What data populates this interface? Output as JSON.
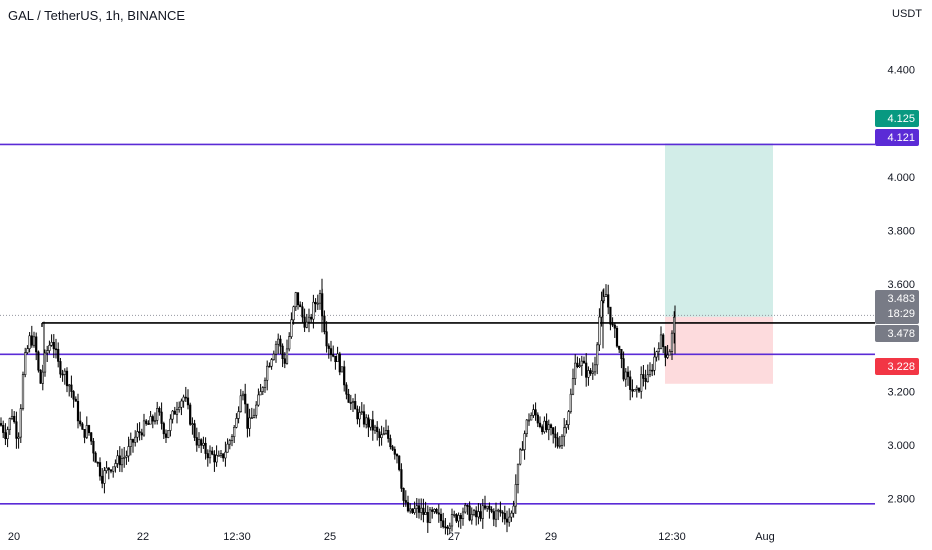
{
  "header": {
    "title": "GAL / TetherUS, 1h, BINANCE",
    "currency": "USDT"
  },
  "chart_data": {
    "type": "candlestick",
    "title": "GAL / TetherUS, 1h, BINANCE",
    "y_axis": {
      "ticks": [
        "4.400",
        "4.000",
        "3.800",
        "3.600",
        "3.200",
        "3.000",
        "2.800"
      ],
      "values": [
        4.4,
        4.0,
        3.8,
        3.6,
        3.2,
        3.0,
        2.8
      ],
      "ylim": [
        2.66,
        4.66
      ],
      "unit": "USDT"
    },
    "x_axis": {
      "ticks": [
        "20",
        "22",
        "12:30",
        "25",
        "27",
        "29",
        "12:30",
        "Aug"
      ]
    },
    "horizontal_lines": [
      {
        "price": 4.121,
        "color": "#5b2bd6"
      },
      {
        "price": 3.455,
        "color": "#000000"
      },
      {
        "price": 3.338,
        "color": "#5b2bd6"
      },
      {
        "price": 2.78,
        "color": "#5b2bd6"
      },
      {
        "price": 3.483,
        "color": "#9598a1",
        "style": "dotted"
      }
    ],
    "position": {
      "entry": 3.478,
      "target": 4.125,
      "stop": 3.228
    },
    "price_labels": [
      {
        "text": "4.125",
        "color": "#089981"
      },
      {
        "text": "4.121",
        "color": "#5b2bd6"
      },
      {
        "text": "3.483",
        "color": "#787b86",
        "sub": "18:29"
      },
      {
        "text": "3.478",
        "color": "#787b86"
      },
      {
        "text": "3.228",
        "color": "#f23645"
      }
    ],
    "trend_points": [
      [
        0,
        3.08
      ],
      [
        6,
        3.04
      ],
      [
        12,
        3.12
      ],
      [
        18,
        3.02
      ],
      [
        24,
        3.3
      ],
      [
        30,
        3.4
      ],
      [
        35,
        3.38
      ],
      [
        40,
        3.22
      ],
      [
        46,
        3.34
      ],
      [
        52,
        3.4
      ],
      [
        58,
        3.3
      ],
      [
        64,
        3.27
      ],
      [
        70,
        3.22
      ],
      [
        76,
        3.14
      ],
      [
        82,
        3.04
      ],
      [
        88,
        3.06
      ],
      [
        95,
        2.96
      ],
      [
        102,
        2.88
      ],
      [
        110,
        2.92
      ],
      [
        118,
        2.94
      ],
      [
        126,
        2.96
      ],
      [
        134,
        3.02
      ],
      [
        142,
        3.06
      ],
      [
        150,
        3.08
      ],
      [
        158,
        3.12
      ],
      [
        166,
        3.04
      ],
      [
        172,
        3.1
      ],
      [
        178,
        3.16
      ],
      [
        184,
        3.18
      ],
      [
        190,
        3.1
      ],
      [
        196,
        3.02
      ],
      [
        204,
        2.98
      ],
      [
        212,
        2.96
      ],
      [
        220,
        2.94
      ],
      [
        228,
        3.0
      ],
      [
        236,
        3.08
      ],
      [
        242,
        3.24
      ],
      [
        248,
        3.06
      ],
      [
        254,
        3.12
      ],
      [
        260,
        3.18
      ],
      [
        266,
        3.28
      ],
      [
        272,
        3.34
      ],
      [
        278,
        3.4
      ],
      [
        284,
        3.3
      ],
      [
        290,
        3.42
      ],
      [
        296,
        3.56
      ],
      [
        302,
        3.48
      ],
      [
        308,
        3.44
      ],
      [
        314,
        3.52
      ],
      [
        320,
        3.56
      ],
      [
        326,
        3.4
      ],
      [
        332,
        3.34
      ],
      [
        338,
        3.32
      ],
      [
        344,
        3.24
      ],
      [
        350,
        3.16
      ],
      [
        356,
        3.12
      ],
      [
        362,
        3.1
      ],
      [
        368,
        3.08
      ],
      [
        374,
        3.06
      ],
      [
        380,
        3.02
      ],
      [
        386,
        3.04
      ],
      [
        392,
        3.0
      ],
      [
        398,
        2.96
      ],
      [
        404,
        2.78
      ],
      [
        410,
        2.74
      ],
      [
        416,
        2.76
      ],
      [
        422,
        2.75
      ],
      [
        428,
        2.73
      ],
      [
        434,
        2.74
      ],
      [
        440,
        2.72
      ],
      [
        446,
        2.71
      ],
      [
        452,
        2.72
      ],
      [
        458,
        2.74
      ],
      [
        464,
        2.76
      ],
      [
        470,
        2.74
      ],
      [
        476,
        2.73
      ],
      [
        482,
        2.75
      ],
      [
        488,
        2.76
      ],
      [
        494,
        2.74
      ],
      [
        500,
        2.75
      ],
      [
        506,
        2.73
      ],
      [
        512,
        2.74
      ],
      [
        516,
        2.86
      ],
      [
        522,
        3.0
      ],
      [
        528,
        3.1
      ],
      [
        534,
        3.12
      ],
      [
        540,
        3.08
      ],
      [
        546,
        3.06
      ],
      [
        552,
        3.04
      ],
      [
        558,
        3.0
      ],
      [
        564,
        3.06
      ],
      [
        570,
        3.16
      ],
      [
        576,
        3.32
      ],
      [
        582,
        3.3
      ],
      [
        588,
        3.26
      ],
      [
        594,
        3.28
      ],
      [
        600,
        3.5
      ],
      [
        606,
        3.56
      ],
      [
        612,
        3.44
      ],
      [
        618,
        3.38
      ],
      [
        624,
        3.26
      ],
      [
        630,
        3.22
      ],
      [
        636,
        3.18
      ],
      [
        642,
        3.26
      ],
      [
        648,
        3.24
      ],
      [
        654,
        3.32
      ],
      [
        660,
        3.4
      ],
      [
        666,
        3.34
      ],
      [
        670,
        3.36
      ],
      [
        675,
        3.48
      ]
    ]
  }
}
